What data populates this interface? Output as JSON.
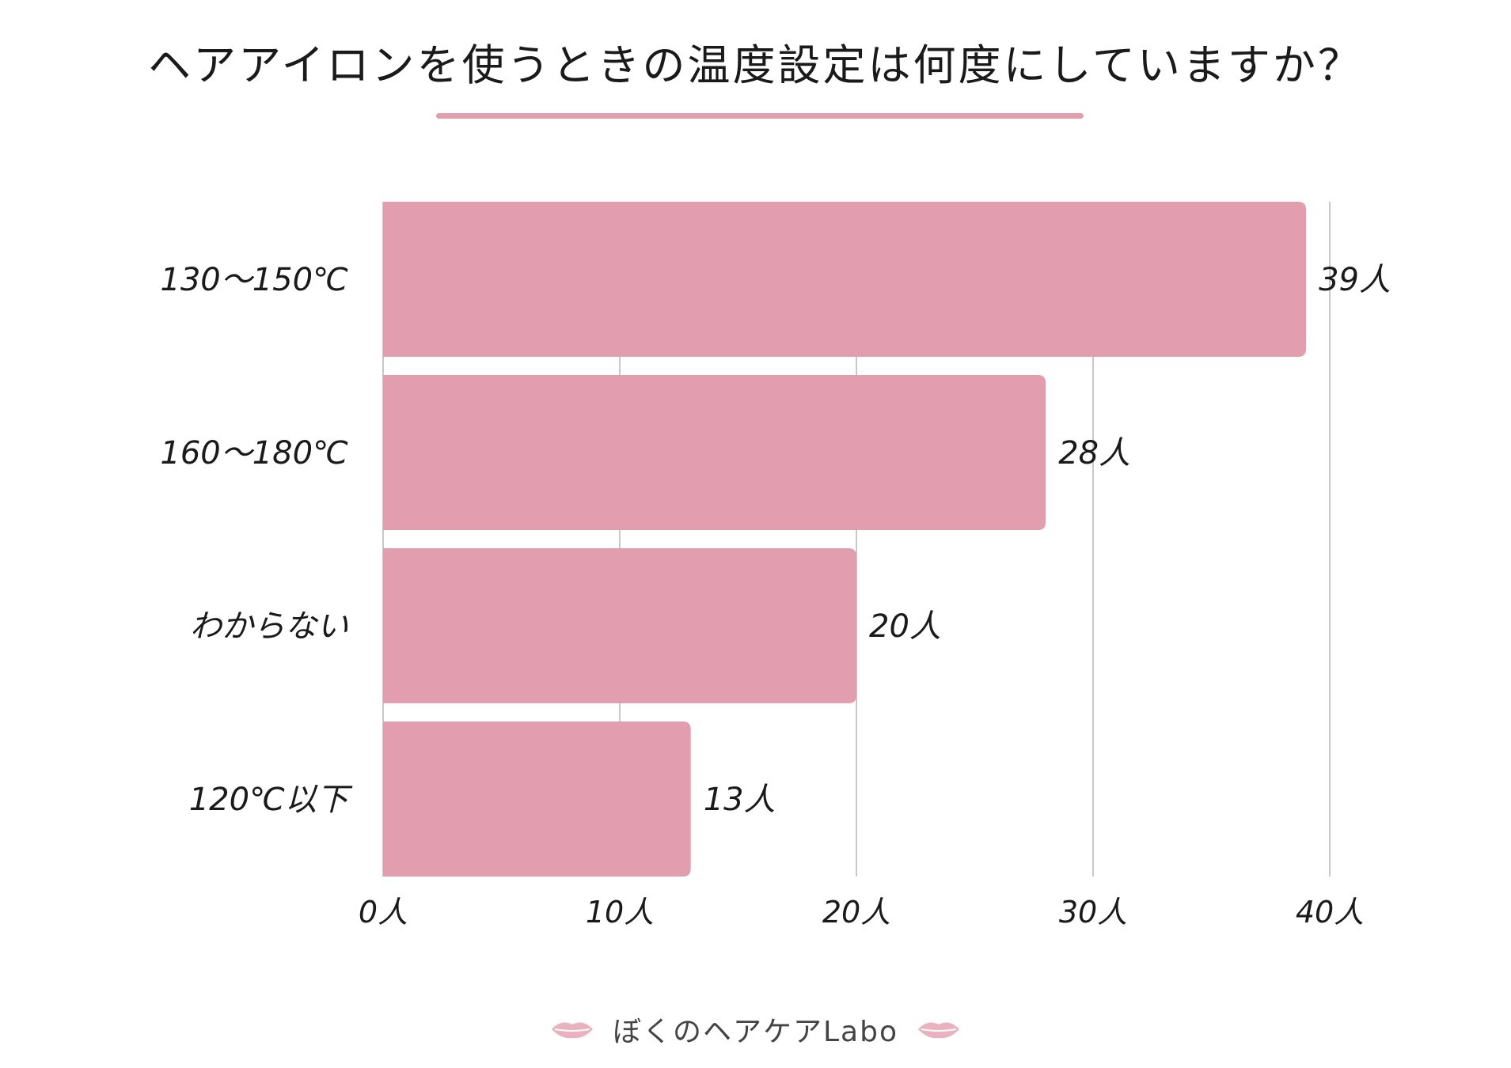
{
  "colors": {
    "bar": "#e29dae",
    "underline": "#e29dae",
    "grid": "#c8c8c8",
    "text": "#1a1a1a"
  },
  "brand": {
    "text": "ぼくのヘアケアLabo",
    "icon": "lips-icon"
  },
  "chart_data": {
    "type": "bar",
    "orientation": "horizontal",
    "title": "ヘアアイロンを使うときの温度設定は何度にしていますか？",
    "categories": [
      "130～150℃",
      "160～180℃",
      "わからない",
      "120℃以下"
    ],
    "values": [
      39,
      28,
      20,
      13
    ],
    "value_labels": [
      "39人",
      "28人",
      "20人",
      "13人"
    ],
    "xlim": [
      0,
      40
    ],
    "xticks": [
      0,
      10,
      20,
      30,
      40
    ],
    "xtick_labels": [
      "0人",
      "10人",
      "20人",
      "30人",
      "40人"
    ],
    "grid": true,
    "legend": "none"
  }
}
